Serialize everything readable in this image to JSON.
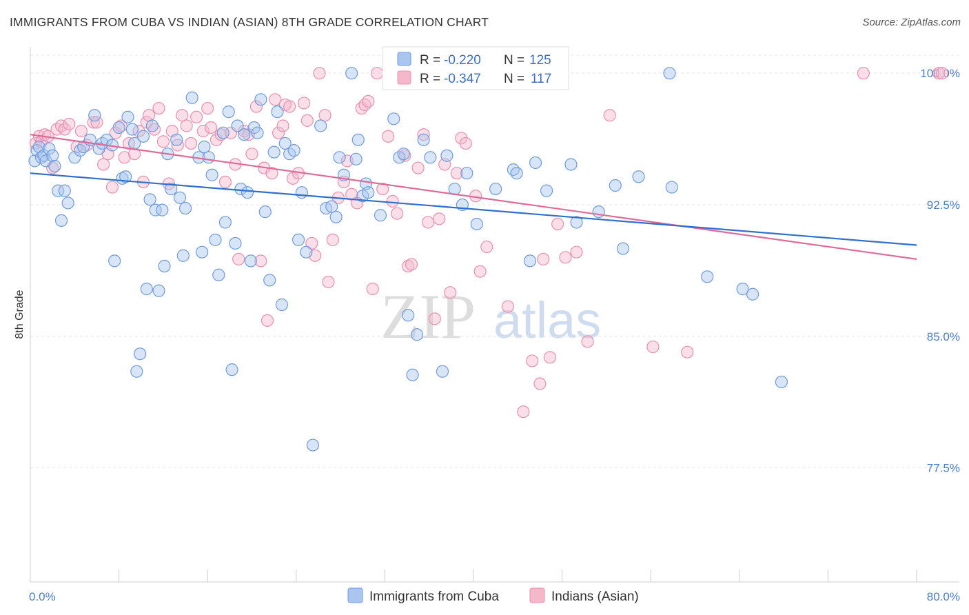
{
  "title": "IMMIGRANTS FROM CUBA VS INDIAN (ASIAN) 8TH GRADE CORRELATION CHART",
  "source": "Source: ZipAtlas.com",
  "watermark": {
    "zip": "ZIP",
    "atlas": "atlas"
  },
  "colors": {
    "blue_fill": "#a9c6ee",
    "blue_stroke": "#6f9bdc",
    "blue_line": "#2f6fce",
    "pink_fill": "#f5b8cb",
    "pink_stroke": "#e98fae",
    "pink_line": "#e06a96",
    "grid": "#e3e3e3",
    "tick_text": "#4a7cc9"
  },
  "chart_data": {
    "type": "scatter",
    "title": "IMMIGRANTS FROM CUBA VS INDIAN (ASIAN) 8TH GRADE CORRELATION CHART",
    "xlabel": "",
    "ylabel": "8th Grade",
    "xlim": [
      0,
      80
    ],
    "ylim": [
      71.0,
      101.5
    ],
    "x_tick_labels": [
      "0.0%",
      "80.0%"
    ],
    "y_ticks": [
      77.5,
      85.0,
      92.5,
      100.0
    ],
    "y_tick_labels": [
      "77.5%",
      "85.0%",
      "92.5%",
      "100.0%"
    ],
    "grid": "horizontal dashed",
    "legend_placement": "top-center",
    "stats": [
      {
        "r_label": "R =",
        "r": "-0.220",
        "n_label": "N =",
        "n": "125"
      },
      {
        "r_label": "R =",
        "r": "-0.347",
        "n_label": "N =",
        "n": "117"
      }
    ],
    "series": [
      {
        "name": "Immigrants from Cuba",
        "trend": {
          "x": [
            0,
            80
          ],
          "y": [
            94.3,
            90.2
          ]
        },
        "points": [
          [
            0.4,
            95.0
          ],
          [
            0.6,
            95.6
          ],
          [
            0.8,
            95.8
          ],
          [
            1.0,
            95.2
          ],
          [
            1.2,
            95.3
          ],
          [
            1.4,
            95.0
          ],
          [
            1.7,
            95.7
          ],
          [
            2.0,
            95.3
          ],
          [
            2.2,
            94.7
          ],
          [
            2.5,
            93.3
          ],
          [
            2.8,
            91.6
          ],
          [
            3.1,
            93.3
          ],
          [
            3.4,
            92.6
          ],
          [
            4.0,
            95.2
          ],
          [
            4.5,
            95.6
          ],
          [
            4.8,
            95.8
          ],
          [
            5.4,
            96.2
          ],
          [
            5.8,
            97.6
          ],
          [
            6.2,
            95.7
          ],
          [
            6.5,
            96.0
          ],
          [
            6.9,
            96.2
          ],
          [
            7.4,
            95.9
          ],
          [
            7.6,
            89.3
          ],
          [
            8.0,
            96.9
          ],
          [
            8.3,
            94.0
          ],
          [
            8.6,
            94.1
          ],
          [
            8.8,
            97.5
          ],
          [
            9.2,
            96.8
          ],
          [
            9.4,
            96.0
          ],
          [
            9.6,
            83.0
          ],
          [
            9.9,
            84.0
          ],
          [
            10.2,
            96.4
          ],
          [
            10.5,
            87.7
          ],
          [
            10.8,
            92.8
          ],
          [
            11.0,
            97.0
          ],
          [
            11.3,
            92.2
          ],
          [
            11.6,
            87.6
          ],
          [
            11.9,
            92.2
          ],
          [
            12.1,
            89.0
          ],
          [
            12.4,
            95.4
          ],
          [
            12.7,
            93.4
          ],
          [
            13.2,
            96.2
          ],
          [
            13.5,
            92.9
          ],
          [
            13.8,
            89.6
          ],
          [
            14.0,
            92.3
          ],
          [
            14.6,
            98.6
          ],
          [
            15.2,
            95.2
          ],
          [
            15.5,
            89.8
          ],
          [
            15.7,
            95.8
          ],
          [
            16.1,
            95.2
          ],
          [
            16.4,
            94.2
          ],
          [
            16.7,
            90.5
          ],
          [
            17.0,
            88.5
          ],
          [
            17.4,
            96.6
          ],
          [
            17.6,
            91.5
          ],
          [
            17.9,
            97.8
          ],
          [
            18.2,
            83.1
          ],
          [
            18.5,
            90.3
          ],
          [
            18.7,
            97.0
          ],
          [
            19.0,
            93.4
          ],
          [
            19.3,
            96.5
          ],
          [
            19.6,
            93.2
          ],
          [
            19.9,
            89.3
          ],
          [
            20.2,
            96.9
          ],
          [
            20.5,
            96.6
          ],
          [
            20.8,
            98.5
          ],
          [
            21.2,
            92.1
          ],
          [
            21.6,
            88.2
          ],
          [
            22.0,
            95.5
          ],
          [
            22.3,
            97.8
          ],
          [
            22.7,
            86.8
          ],
          [
            23.0,
            96.0
          ],
          [
            23.4,
            95.4
          ],
          [
            23.8,
            95.6
          ],
          [
            24.2,
            90.5
          ],
          [
            24.5,
            93.2
          ],
          [
            24.9,
            89.8
          ],
          [
            25.5,
            78.8
          ],
          [
            26.2,
            97.0
          ],
          [
            26.7,
            92.3
          ],
          [
            27.2,
            92.4
          ],
          [
            27.6,
            91.8
          ],
          [
            27.9,
            95.2
          ],
          [
            28.3,
            94.2
          ],
          [
            29.0,
            100.0
          ],
          [
            29.4,
            95.1
          ],
          [
            29.6,
            96.2
          ],
          [
            30.0,
            93.0
          ],
          [
            30.3,
            93.7
          ],
          [
            30.5,
            93.2
          ],
          [
            31.6,
            91.9
          ],
          [
            32.8,
            97.4
          ],
          [
            33.3,
            95.2
          ],
          [
            33.7,
            95.4
          ],
          [
            34.1,
            86.2
          ],
          [
            34.5,
            82.8
          ],
          [
            34.9,
            85.1
          ],
          [
            35.5,
            96.2
          ],
          [
            36.1,
            95.2
          ],
          [
            37.2,
            83.0
          ],
          [
            37.6,
            95.3
          ],
          [
            38.3,
            93.4
          ],
          [
            39.0,
            92.5
          ],
          [
            39.4,
            94.3
          ],
          [
            40.3,
            91.4
          ],
          [
            42.0,
            93.4
          ],
          [
            43.6,
            94.5
          ],
          [
            43.9,
            94.3
          ],
          [
            45.1,
            89.3
          ],
          [
            45.6,
            94.9
          ],
          [
            46.6,
            93.3
          ],
          [
            48.8,
            94.8
          ],
          [
            49.3,
            91.5
          ],
          [
            51.3,
            92.1
          ],
          [
            52.8,
            93.6
          ],
          [
            53.5,
            90.0
          ],
          [
            54.9,
            94.1
          ],
          [
            57.7,
            100.0
          ],
          [
            57.9,
            93.5
          ],
          [
            61.1,
            88.4
          ],
          [
            64.3,
            87.7
          ],
          [
            65.2,
            87.4
          ],
          [
            67.8,
            82.4
          ]
        ]
      },
      {
        "name": "Indians (Asian)",
        "trend": {
          "x": [
            0,
            80
          ],
          "y": [
            96.5,
            89.4
          ]
        },
        "points": [
          [
            0.5,
            96.0
          ],
          [
            0.8,
            96.4
          ],
          [
            1.0,
            96.1
          ],
          [
            1.3,
            96.5
          ],
          [
            1.6,
            96.4
          ],
          [
            2.0,
            94.6
          ],
          [
            2.4,
            96.8
          ],
          [
            2.8,
            97.0
          ],
          [
            3.1,
            96.8
          ],
          [
            3.5,
            97.1
          ],
          [
            4.2,
            95.8
          ],
          [
            4.6,
            96.7
          ],
          [
            5.1,
            95.9
          ],
          [
            5.7,
            97.2
          ],
          [
            6.0,
            97.2
          ],
          [
            6.6,
            94.8
          ],
          [
            7.0,
            95.4
          ],
          [
            7.4,
            93.5
          ],
          [
            7.7,
            96.6
          ],
          [
            8.2,
            97.0
          ],
          [
            8.5,
            95.2
          ],
          [
            8.9,
            96.0
          ],
          [
            9.4,
            95.4
          ],
          [
            9.8,
            96.7
          ],
          [
            10.2,
            93.8
          ],
          [
            10.5,
            97.2
          ],
          [
            10.7,
            97.6
          ],
          [
            11.2,
            96.8
          ],
          [
            11.6,
            98.0
          ],
          [
            12.0,
            96.1
          ],
          [
            12.5,
            93.7
          ],
          [
            12.8,
            96.7
          ],
          [
            13.3,
            95.9
          ],
          [
            13.7,
            97.6
          ],
          [
            14.1,
            97.0
          ],
          [
            14.5,
            96.0
          ],
          [
            15.0,
            97.5
          ],
          [
            15.6,
            96.7
          ],
          [
            16.0,
            98.0
          ],
          [
            16.3,
            96.9
          ],
          [
            16.8,
            96.2
          ],
          [
            17.2,
            96.5
          ],
          [
            17.6,
            93.8
          ],
          [
            18.1,
            96.6
          ],
          [
            18.5,
            94.8
          ],
          [
            18.8,
            89.4
          ],
          [
            19.3,
            96.7
          ],
          [
            19.7,
            96.5
          ],
          [
            20.0,
            95.4
          ],
          [
            20.4,
            98.1
          ],
          [
            20.8,
            89.3
          ],
          [
            21.1,
            94.6
          ],
          [
            21.4,
            85.9
          ],
          [
            21.8,
            94.3
          ],
          [
            22.1,
            98.5
          ],
          [
            22.4,
            96.6
          ],
          [
            22.8,
            97.0
          ],
          [
            23.0,
            98.2
          ],
          [
            23.4,
            98.1
          ],
          [
            23.7,
            94.0
          ],
          [
            24.2,
            94.3
          ],
          [
            24.7,
            98.3
          ],
          [
            25.0,
            97.3
          ],
          [
            25.4,
            90.3
          ],
          [
            25.7,
            89.6
          ],
          [
            26.1,
            100.0
          ],
          [
            26.6,
            97.6
          ],
          [
            26.9,
            88.1
          ],
          [
            27.3,
            90.5
          ],
          [
            27.8,
            92.9
          ],
          [
            28.3,
            93.8
          ],
          [
            28.6,
            95.0
          ],
          [
            29.0,
            93.1
          ],
          [
            29.5,
            92.6
          ],
          [
            29.9,
            98.0
          ],
          [
            30.2,
            98.2
          ],
          [
            30.5,
            98.4
          ],
          [
            30.9,
            87.7
          ],
          [
            31.3,
            100.0
          ],
          [
            31.8,
            93.4
          ],
          [
            32.3,
            96.4
          ],
          [
            32.7,
            92.7
          ],
          [
            33.1,
            92.0
          ],
          [
            33.8,
            95.3
          ],
          [
            34.1,
            89.0
          ],
          [
            34.4,
            89.1
          ],
          [
            35.0,
            94.6
          ],
          [
            35.5,
            96.5
          ],
          [
            35.9,
            91.5
          ],
          [
            36.5,
            86.0
          ],
          [
            36.9,
            91.7
          ],
          [
            37.4,
            94.8
          ],
          [
            37.9,
            87.5
          ],
          [
            38.5,
            94.3
          ],
          [
            38.9,
            96.3
          ],
          [
            39.3,
            96.0
          ],
          [
            40.2,
            93.0
          ],
          [
            40.6,
            88.7
          ],
          [
            41.2,
            90.1
          ],
          [
            43.1,
            86.7
          ],
          [
            44.5,
            80.7
          ],
          [
            45.3,
            83.6
          ],
          [
            46.0,
            82.3
          ],
          [
            46.3,
            89.4
          ],
          [
            46.9,
            83.8
          ],
          [
            47.6,
            91.4
          ],
          [
            48.3,
            89.5
          ],
          [
            49.3,
            89.8
          ],
          [
            50.3,
            84.7
          ],
          [
            52.3,
            97.6
          ],
          [
            56.2,
            84.4
          ],
          [
            59.3,
            84.1
          ],
          [
            75.2,
            100.0
          ],
          [
            82.0,
            100.0
          ],
          [
            82.3,
            100.0
          ]
        ]
      }
    ]
  },
  "legend": {
    "items": [
      {
        "label": "Immigrants from Cuba"
      },
      {
        "label": "Indians (Asian)"
      }
    ]
  }
}
